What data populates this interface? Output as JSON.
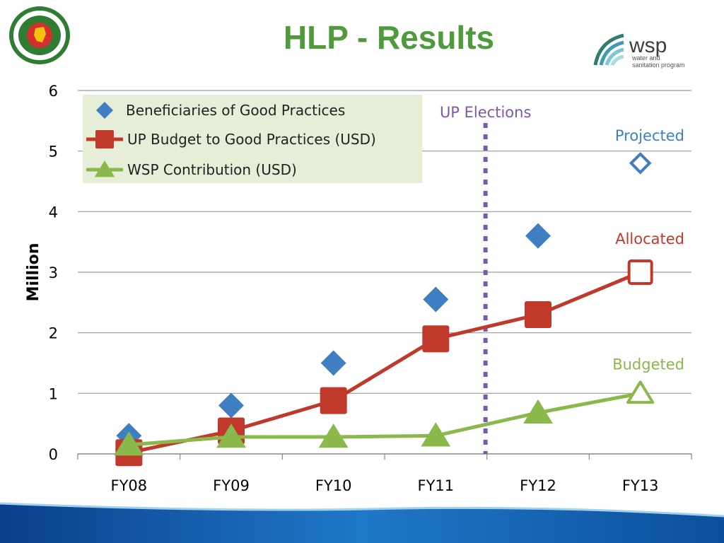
{
  "slide": {
    "title": "HLP - Results",
    "wsp_logo": {
      "brand": "wsp",
      "line1": "water and",
      "line2": "sanitation program"
    },
    "colors": {
      "title": "#4f9a3c",
      "beneficiaries": "#3f7fc1",
      "budget": "#c0392b",
      "wsp": "#8ab84a",
      "elections": "#7b5aa6"
    }
  },
  "chart_data": {
    "type": "line",
    "categories": [
      "FY08",
      "FY09",
      "FY10",
      "FY11",
      "FY12",
      "FY13"
    ],
    "ylabel": "Million",
    "xlabel": "",
    "ylim": [
      0,
      6
    ],
    "yticks": [
      0,
      1,
      2,
      3,
      4,
      5,
      6
    ],
    "grid": true,
    "legend_position": "top-left",
    "series": [
      {
        "name": "Beneficiaries of Good Practices",
        "marker": "diamond",
        "line": false,
        "values": [
          0.3,
          0.8,
          1.5,
          2.55,
          3.6,
          4.8
        ]
      },
      {
        "name": "UP Budget to Good Practices (USD)",
        "marker": "square",
        "line": true,
        "values": [
          0.02,
          0.38,
          0.88,
          1.9,
          2.3,
          3.0
        ]
      },
      {
        "name": "WSP Contribution (USD)",
        "marker": "triangle",
        "line": true,
        "values": [
          0.15,
          0.28,
          0.28,
          0.3,
          0.68,
          1.0
        ]
      }
    ],
    "annotations": [
      {
        "text": "UP Elections",
        "type": "vertical-line",
        "between": [
          "FY11",
          "FY12"
        ]
      },
      {
        "text": "Projected",
        "series": 0,
        "category": "FY13"
      },
      {
        "text": "Allocated",
        "series": 1,
        "category": "FY13"
      },
      {
        "text": "Budgeted",
        "series": 2,
        "category": "FY13"
      }
    ]
  }
}
